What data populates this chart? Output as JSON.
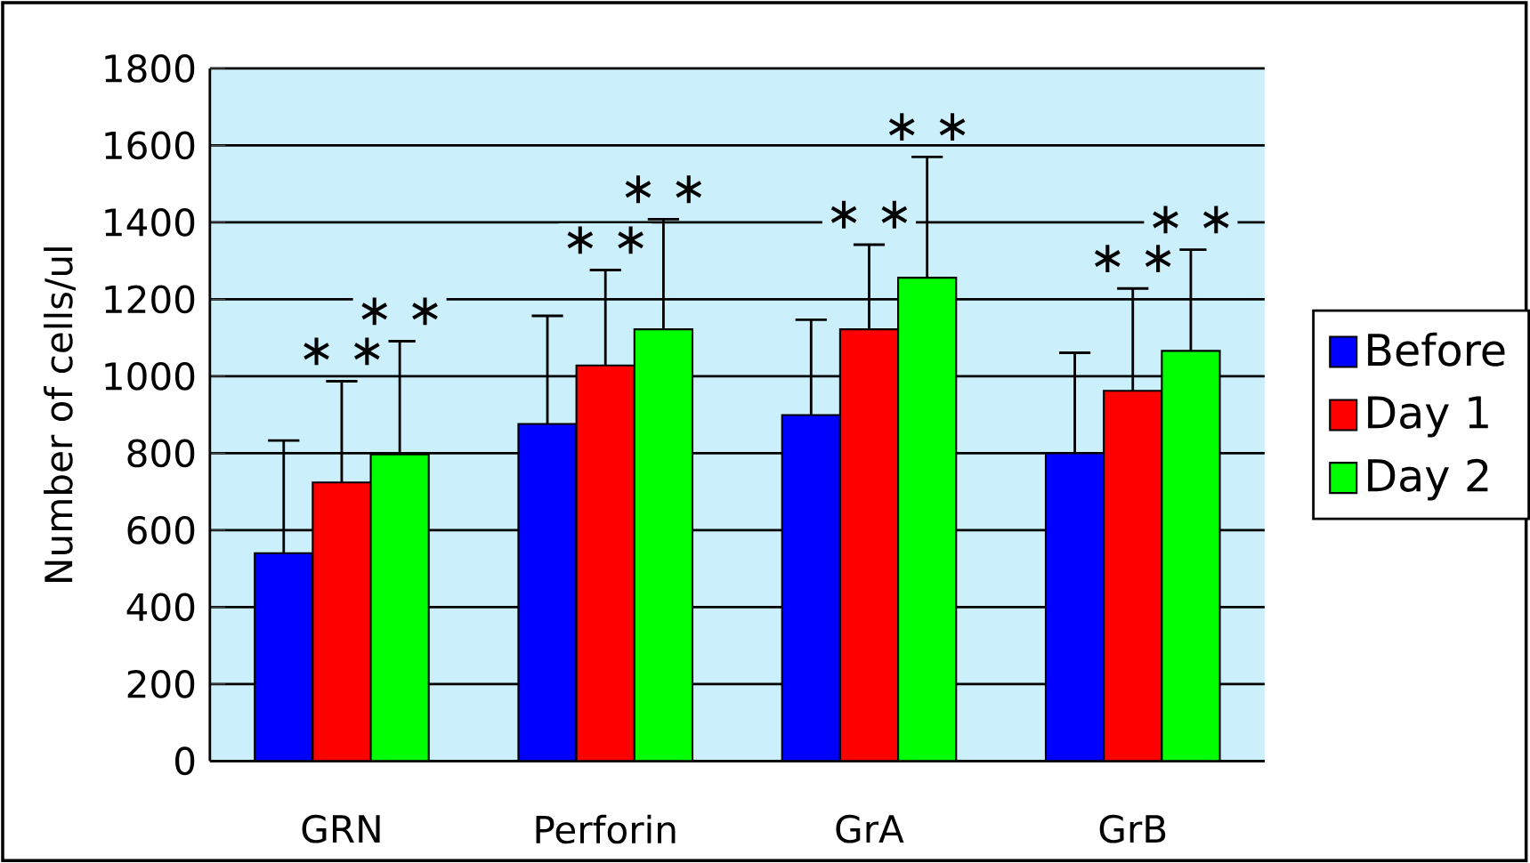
{
  "chart_data": {
    "type": "bar",
    "ylabel": "Number of cells/ul",
    "categories": [
      "GRN",
      "Perforin",
      "GrA",
      "GrB"
    ],
    "series": [
      {
        "name": "Before",
        "color": "#0000ff",
        "values": [
          540,
          876,
          899,
          800
        ],
        "errors": [
          293,
          281,
          248,
          261
        ]
      },
      {
        "name": "Day 1",
        "color": "#ff0000",
        "values": [
          724,
          1028,
          1122,
          962
        ],
        "errors": [
          263,
          248,
          220,
          266
        ]
      },
      {
        "name": "Day 2",
        "color": "#00ff00",
        "values": [
          797,
          1122,
          1256,
          1066
        ],
        "errors": [
          294,
          286,
          314,
          263
        ]
      }
    ],
    "ylim": [
      0,
      1800
    ],
    "yticks": [
      0,
      200,
      400,
      600,
      800,
      1000,
      1200,
      1400,
      1600,
      1800
    ],
    "grid": "y",
    "legend": "right",
    "annotations": [
      "∗ ∗",
      "∗ ∗",
      "∗ ∗",
      "∗ ∗",
      "∗ ∗",
      "∗ ∗",
      "∗ ∗",
      "∗ ∗"
    ]
  }
}
